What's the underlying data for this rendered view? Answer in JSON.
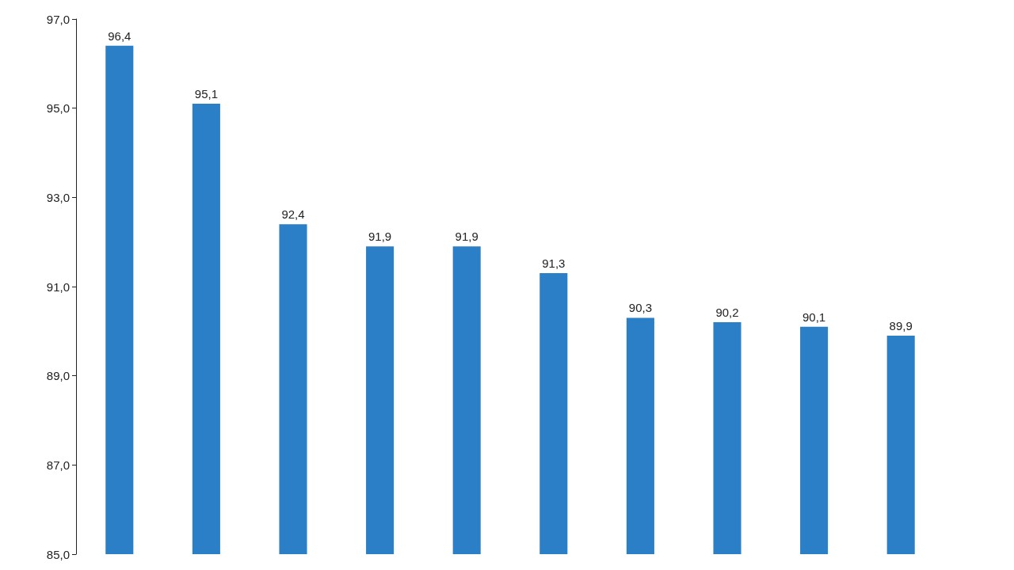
{
  "chart_data": {
    "type": "bar",
    "categories": [
      null,
      null,
      null,
      null,
      null,
      null,
      null,
      null,
      null,
      null
    ],
    "values": [
      96.4,
      95.1,
      92.4,
      91.9,
      91.9,
      91.3,
      90.3,
      90.2,
      90.1,
      89.9
    ],
    "value_labels": [
      "96,4",
      "95,1",
      "92,4",
      "91,9",
      "91,9",
      "91,3",
      "90,3",
      "90,2",
      "90,1",
      "89,9"
    ],
    "color": "#2a7fc6",
    "ylim": [
      85,
      97
    ],
    "yticks": [
      {
        "value": 85,
        "label": "85,0"
      },
      {
        "value": 87,
        "label": "87,0"
      },
      {
        "value": 89,
        "label": "89,0"
      },
      {
        "value": 91,
        "label": "91,0"
      },
      {
        "value": 93,
        "label": "93,0"
      },
      {
        "value": 95,
        "label": "95,0"
      },
      {
        "value": 97,
        "label": "97,0"
      }
    ],
    "grid": false
  }
}
